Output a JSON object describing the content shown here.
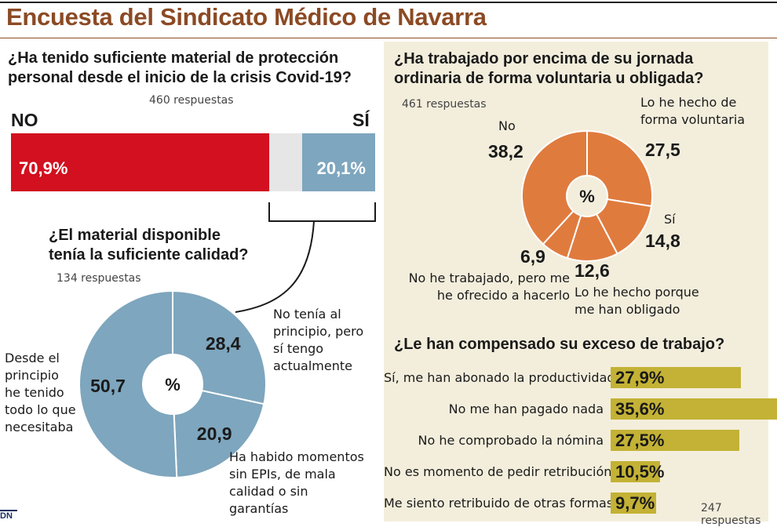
{
  "title": "Encuesta del Sindicato Médico de Navarra",
  "colors": {
    "title": "#8b4a24",
    "no": "#d2101f",
    "si": "#7ea6be",
    "blue_pie": "#7ea6be",
    "orange_pie": "#e07b3e",
    "bar_gold": "#c3b235",
    "panel": "#f3eedc"
  },
  "q1": {
    "title_line1": "¿Ha tenido suficiente material de protección",
    "title_line2": "personal desde el inicio de la crisis Covid-19?",
    "responses": "460 respuestas",
    "no_label": "NO",
    "si_label": "SÍ",
    "no_value": "70,9%",
    "si_value": "20,1%"
  },
  "q2": {
    "title_line1": "¿El material disponible",
    "title_line2": "tenía la suficiente calidad?",
    "responses": "134 respuestas",
    "center": "%",
    "labels": {
      "a": [
        "Desde el",
        "principio",
        "he tenido",
        "todo lo que",
        "necesitaba"
      ],
      "b": [
        "No tenía al",
        "principio, pero",
        "sí tengo",
        "actualmente"
      ],
      "c": [
        "Ha habido momentos",
        "sin EPIs, de mala",
        "calidad o sin",
        "garantías"
      ]
    }
  },
  "q3": {
    "title_line1": "¿Ha trabajado por encima de su jornada",
    "title_line2": "ordinaria de forma voluntaria u obligada?",
    "responses": "461 respuestas",
    "center": "%",
    "labels": {
      "no": "No",
      "vol": [
        "Lo he hecho de",
        "forma voluntaria"
      ],
      "si": "Sí",
      "obl": [
        "Lo he hecho porque",
        "me han obligado"
      ],
      "noTrab": [
        "No he trabajado, pero me",
        "he ofrecido a hacerlo"
      ]
    }
  },
  "q4": {
    "title": "¿Le han compensado su exceso de trabajo?",
    "responses": "247 respuestas"
  },
  "chart_data": [
    {
      "type": "bar",
      "title": "¿Ha tenido suficiente material de protección personal desde el inicio de la crisis Covid-19?",
      "subtitle": "460 respuestas",
      "categories": [
        "NO",
        "SÍ"
      ],
      "values": [
        70.9,
        20.1
      ],
      "value_labels": [
        "70,9%",
        "20,1%"
      ],
      "orientation": "stacked-horizontal"
    },
    {
      "type": "pie",
      "title": "¿El material disponible tenía la suficiente calidad?",
      "subtitle": "134 respuestas",
      "categories": [
        "No tenía al principio, pero sí tengo actualmente",
        "Ha habido momentos sin EPIs, de mala calidad o sin garantías",
        "Desde el principio he tenido todo lo que necesitaba"
      ],
      "values": [
        28.4,
        20.9,
        50.7
      ],
      "value_labels": [
        "28,4",
        "20,9",
        "50,7"
      ]
    },
    {
      "type": "pie",
      "title": "¿Ha trabajado por encima de su jornada ordinaria de forma voluntaria u obligada?",
      "subtitle": "461 respuestas",
      "categories": [
        "Lo he hecho de forma voluntaria",
        "Sí",
        "Lo he hecho porque me han obligado",
        "No he trabajado, pero me he ofrecido a hacerlo",
        "No"
      ],
      "values": [
        27.5,
        14.8,
        12.6,
        6.9,
        38.2
      ],
      "value_labels": [
        "27,5",
        "14,8",
        "12,6",
        "6,9",
        "38,2"
      ]
    },
    {
      "type": "bar",
      "title": "¿Le han compensado su exceso de trabajo?",
      "subtitle": "247 respuestas",
      "categories": [
        "Sí, me han abonado la productividad",
        "No me han pagado nada",
        "No he comprobado la nómina",
        "No es momento de pedir retribución",
        "Me siento retribuido de otras formas"
      ],
      "values": [
        27.9,
        35.6,
        27.5,
        10.5,
        9.7
      ],
      "value_labels": [
        "27,9%",
        "35,6%",
        "27,5%",
        "10,5%",
        "9,7%"
      ],
      "orientation": "horizontal"
    }
  ],
  "logo": "DN"
}
